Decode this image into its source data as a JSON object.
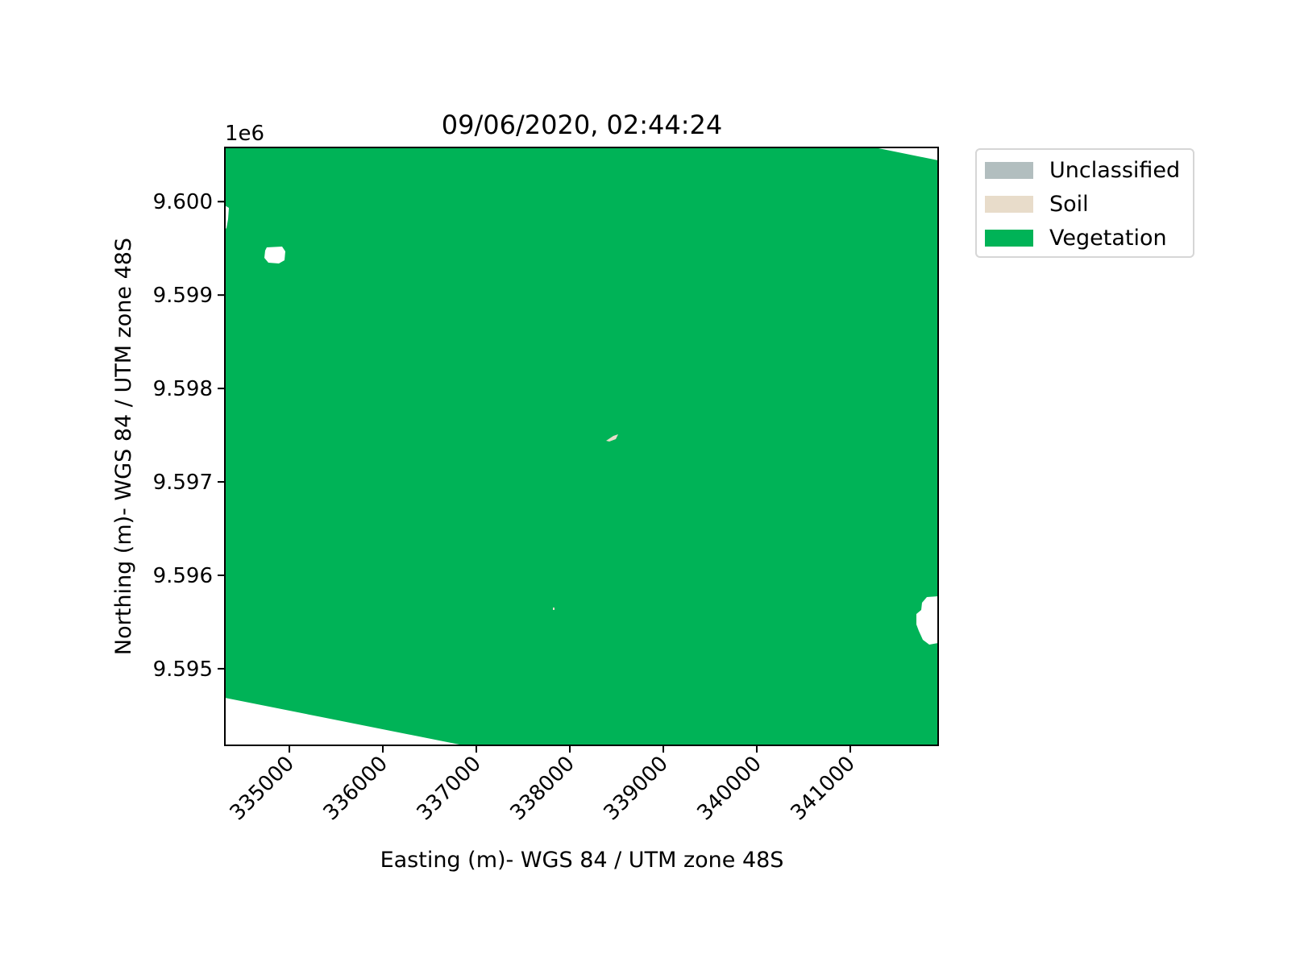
{
  "title": "09/06/2020, 02:44:24",
  "x_axis": {
    "label": "Easting (m)- WGS 84 / UTM zone 48S",
    "ticks": [
      335000,
      336000,
      337000,
      338000,
      339000,
      340000,
      341000
    ],
    "tick_labels": [
      "335000",
      "336000",
      "337000",
      "338000",
      "339000",
      "340000",
      "341000"
    ],
    "range": [
      334310,
      341940
    ]
  },
  "y_axis": {
    "label": "Northing (m)- WGS 84 / UTM zone 48S",
    "offset_label": "1e6",
    "ticks": [
      9.595,
      9.596,
      9.597,
      9.598,
      9.599,
      9.6
    ],
    "tick_labels": [
      "9.595",
      "9.596",
      "9.597",
      "9.598",
      "9.599",
      "9.600"
    ],
    "range": [
      9.59418,
      9.60058
    ]
  },
  "legend": {
    "placement": "outside-upper-right",
    "items": [
      {
        "label": "Unclassified",
        "color": "#b2bebf"
      },
      {
        "label": "Soil",
        "color": "#e8dcca"
      },
      {
        "label": "Vegetation",
        "color": "#00b357"
      }
    ]
  },
  "map_data": {
    "type": "classified-raster",
    "classes": [
      "Unclassified",
      "Soil",
      "Vegetation"
    ],
    "dominant_class": "Vegetation"
  }
}
